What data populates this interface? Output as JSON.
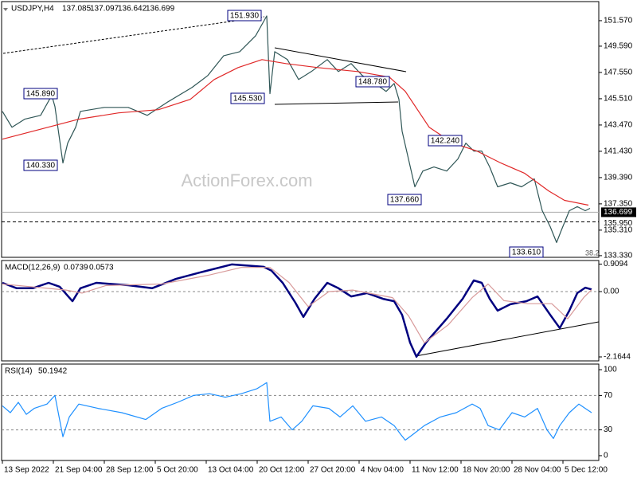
{
  "chart_data": [
    {
      "type": "line",
      "symbol": "USDJPY,H4",
      "ohlc": [
        137.085,
        137.097,
        136.642,
        136.699
      ],
      "watermark": "ActionForex.com",
      "fib_note": "38.2",
      "xlim": [
        -0.5,
        374.5
      ],
      "ylim": [
        133.2,
        153.05
      ],
      "yticks": [
        {
          "value": 151.57,
          "label": "151.570"
        },
        {
          "value": 149.59,
          "label": "149.590"
        },
        {
          "value": 147.55,
          "label": "147.550"
        },
        {
          "value": 145.51,
          "label": "145.510"
        },
        {
          "value": 143.47,
          "label": "143.470"
        },
        {
          "value": 141.43,
          "label": "141.430"
        },
        {
          "value": 139.39,
          "label": "139.390"
        },
        {
          "value": 137.35,
          "label": "137.350"
        },
        {
          "value": 135.31,
          "label": "135.310"
        },
        {
          "value": 133.33,
          "label": "133.330"
        }
      ],
      "last_price": {
        "value": 136.699,
        "label": "136.699"
      },
      "support": {
        "value": 135.95,
        "label": "135.950"
      },
      "annotations": [
        "151.930",
        "145.890",
        "140.330",
        "145.530",
        "148.780",
        "142.240",
        "137.660",
        "133.610"
      ],
      "series": [
        {
          "color": "#2f5656",
          "x": [
            0,
            6,
            14,
            24,
            31,
            33,
            38,
            41,
            46,
            49,
            64,
            79,
            91,
            104,
            119,
            129,
            139,
            149,
            159,
            166,
            168,
            171,
            179,
            186,
            194,
            204,
            211,
            219,
            226,
            234,
            241,
            246,
            249,
            251,
            255,
            259,
            264,
            271,
            279,
            286,
            291,
            296,
            301,
            306,
            311,
            319,
            326,
            334,
            339,
            344,
            348,
            351,
            356,
            361,
            366,
            369
          ],
          "values": [
            144.53,
            143.3,
            143.92,
            144.22,
            145.77,
            144.9,
            140.52,
            142.06,
            143.3,
            144.53,
            144.84,
            144.84,
            144.22,
            145.27,
            146.38,
            147.31,
            148.85,
            149.16,
            150.4,
            151.94,
            145.9,
            149.16,
            148.55,
            147.0,
            147.62,
            148.55,
            147.62,
            148.24,
            147.31,
            146.69,
            146.08,
            146.69,
            145.46,
            142.99,
            140.83,
            138.67,
            139.9,
            140.21,
            139.9,
            140.83,
            142.06,
            141.45,
            141.45,
            140.21,
            138.67,
            138.98,
            138.67,
            139.29,
            136.82,
            135.58,
            134.35,
            135.3,
            136.82,
            137.13,
            136.82,
            137.0
          ]
        },
        {
          "color": "#e02828",
          "x": [
            0,
            23,
            48,
            73,
            98,
            118,
            133,
            148,
            163,
            178,
            198,
            223,
            243,
            253,
            268,
            283,
            298,
            313,
            328,
            343,
            353,
            368
          ],
          "values": [
            142.37,
            143.11,
            143.92,
            144.41,
            144.66,
            145.46,
            147.0,
            147.93,
            148.55,
            148.24,
            147.93,
            147.62,
            147.19,
            146.08,
            143.3,
            142.06,
            141.45,
            140.52,
            139.72,
            138.36,
            137.62,
            137.25
          ]
        }
      ]
    },
    {
      "type": "line",
      "title": "MACD(12,26,9)",
      "current": [
        0.0739,
        0.0573
      ],
      "xlim": [
        -0.5,
        374.5
      ],
      "ylim": [
        -2.296,
        1.029
      ],
      "yticks": [
        0.9094,
        {
          "value": 0,
          "label": "0.00"
        },
        -2.1644
      ],
      "levels": [
        0
      ],
      "series": [
        {
          "color": "#00007f",
          "x": [
            0,
            9,
            19,
            29,
            36,
            44,
            49,
            59,
            79,
            94,
            109,
            124,
            144,
            164,
            169,
            176,
            184,
            189,
            196,
            204,
            211,
            219,
            229,
            239,
            246,
            251,
            256,
            260,
            266,
            279,
            289,
            296,
            301,
            306,
            311,
            319,
            329,
            336,
            344,
            350,
            356,
            361,
            366,
            370
          ],
          "values": [
            0.29,
            0.11,
            0.11,
            0.29,
            0.16,
            -0.32,
            0.11,
            0.29,
            0.21,
            0.11,
            0.42,
            0.63,
            0.9,
            0.82,
            0.69,
            0.29,
            -0.37,
            -0.84,
            -0.24,
            0.29,
            0.11,
            -0.16,
            -0.05,
            -0.24,
            -0.32,
            -0.77,
            -1.69,
            -2.16,
            -1.69,
            -0.9,
            -0.24,
            0.37,
            0.29,
            -0.24,
            -0.63,
            -0.42,
            -0.32,
            -0.16,
            -0.77,
            -1.21,
            -0.63,
            -0.05,
            0.13,
            0.07
          ]
        },
        {
          "color": "#d89a9a",
          "x": [
            0,
            20,
            40,
            50,
            65,
            100,
            130,
            150,
            168,
            180,
            192,
            205,
            220,
            245,
            255,
            265,
            280,
            295,
            305,
            315,
            330,
            345,
            355,
            365,
            370
          ],
          "values": [
            0.25,
            0.15,
            0.05,
            -0.05,
            0.2,
            0.25,
            0.55,
            0.8,
            0.8,
            0.3,
            -0.5,
            0.0,
            0.05,
            -0.2,
            -0.8,
            -1.7,
            -1.1,
            -0.2,
            0.25,
            -0.3,
            -0.4,
            -0.4,
            -0.9,
            -0.2,
            0.06
          ]
        }
      ]
    },
    {
      "type": "line",
      "title": "RSI(14)",
      "current": [
        50.1942
      ],
      "xlim": [
        -0.5,
        374.5
      ],
      "ylim": [
        -5.6,
        106.5
      ],
      "yticks": [
        100,
        70,
        30,
        0
      ],
      "levels": [
        70,
        30
      ],
      "xticks": [
        {
          "value": 0,
          "label": "13 Sep 2022"
        },
        {
          "value": 32,
          "label": "21 Sep 04:00"
        },
        {
          "value": 64,
          "label": "28 Sep 12:00"
        },
        {
          "value": 96,
          "label": "5 Oct 20:00"
        },
        {
          "value": 128,
          "label": "13 Oct 04:00"
        },
        {
          "value": 160,
          "label": "20 Oct 12:00"
        },
        {
          "value": 192,
          "label": "27 Oct 20:00"
        },
        {
          "value": 224,
          "label": "4 Nov 04:00"
        },
        {
          "value": 256,
          "label": "11 Nov 12:00"
        },
        {
          "value": 288,
          "label": "18 Nov 20:00"
        },
        {
          "value": 320,
          "label": "28 Nov 04:00"
        },
        {
          "value": 352,
          "label": "5 Dec 12:00"
        }
      ],
      "series": [
        {
          "color": "#1e90ff",
          "x": [
            0,
            5,
            10,
            15,
            20,
            28,
            33,
            38,
            42,
            48,
            60,
            75,
            90,
            100,
            110,
            120,
            130,
            140,
            150,
            160,
            166,
            168,
            175,
            182,
            188,
            195,
            205,
            212,
            220,
            228,
            238,
            246,
            250,
            253,
            258,
            265,
            275,
            285,
            295,
            300,
            305,
            312,
            320,
            328,
            336,
            342,
            346,
            350,
            356,
            362,
            366,
            370
          ],
          "values": [
            58,
            50,
            62,
            48,
            55,
            60,
            70,
            22,
            45,
            60,
            55,
            50,
            42,
            55,
            62,
            70,
            72,
            68,
            72,
            78,
            85,
            40,
            45,
            30,
            40,
            58,
            55,
            45,
            58,
            40,
            45,
            35,
            25,
            18,
            25,
            35,
            45,
            50,
            60,
            55,
            35,
            30,
            50,
            45,
            55,
            30,
            20,
            35,
            50,
            60,
            55,
            50
          ]
        }
      ]
    }
  ]
}
